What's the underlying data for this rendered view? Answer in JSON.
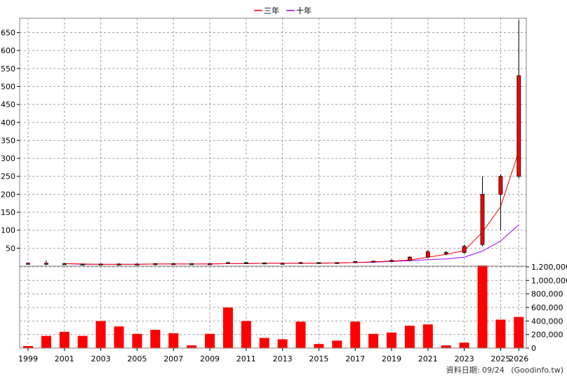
{
  "chart_data": {
    "type": "candlestick+bar",
    "legend": [
      {
        "label": "三年",
        "color": "#ff0000"
      },
      {
        "label": "十年",
        "color": "#9900ff"
      }
    ],
    "legend_position": "top-center",
    "grid": true,
    "price_axis": {
      "side": "left",
      "ylim": [
        0,
        690
      ],
      "ticks": [
        50,
        100,
        150,
        200,
        250,
        300,
        350,
        400,
        450,
        500,
        550,
        600,
        650
      ]
    },
    "volume_axis": {
      "side": "right",
      "ylim": [
        0,
        1200000
      ],
      "ticks": [
        0,
        200000,
        400000,
        600000,
        800000,
        1000000,
        1200000
      ],
      "tick_labels": [
        "0",
        "200,000",
        "400,000",
        "600,000",
        "800,000",
        "1,000,000",
        "1,200,000"
      ]
    },
    "x_tick_labels": [
      "1999",
      "2001",
      "2003",
      "2005",
      "2007",
      "2009",
      "2011",
      "2013",
      "2015",
      "2017",
      "2019",
      "2021",
      "2023",
      "2025",
      "2026"
    ],
    "years": [
      1999,
      2000,
      2001,
      2002,
      2003,
      2004,
      2005,
      2006,
      2007,
      2008,
      2009,
      2010,
      2011,
      2012,
      2013,
      2014,
      2015,
      2016,
      2017,
      2018,
      2019,
      2020,
      2021,
      2022,
      2023,
      2024,
      2025,
      2026
    ],
    "candles": [
      {
        "year": 1999,
        "open": 8,
        "high": 10,
        "low": 6,
        "close": 8
      },
      {
        "year": 2000,
        "open": 8,
        "high": 16,
        "low": 3,
        "close": 8
      },
      {
        "year": 2001,
        "open": 7,
        "high": 8,
        "low": 5,
        "close": 6
      },
      {
        "year": 2002,
        "open": 6,
        "high": 7,
        "low": 4,
        "close": 5
      },
      {
        "year": 2003,
        "open": 5,
        "high": 7,
        "low": 4,
        "close": 6
      },
      {
        "year": 2004,
        "open": 6,
        "high": 8,
        "low": 5,
        "close": 6
      },
      {
        "year": 2005,
        "open": 6,
        "high": 7,
        "low": 5,
        "close": 6
      },
      {
        "year": 2006,
        "open": 6,
        "high": 8,
        "low": 5,
        "close": 7
      },
      {
        "year": 2007,
        "open": 7,
        "high": 8,
        "low": 6,
        "close": 7
      },
      {
        "year": 2008,
        "open": 7,
        "high": 7,
        "low": 6,
        "close": 6
      },
      {
        "year": 2009,
        "open": 6,
        "high": 8,
        "low": 5,
        "close": 7
      },
      {
        "year": 2010,
        "open": 7,
        "high": 12,
        "low": 6,
        "close": 10
      },
      {
        "year": 2011,
        "open": 10,
        "high": 12,
        "low": 7,
        "close": 9
      },
      {
        "year": 2012,
        "open": 9,
        "high": 10,
        "low": 7,
        "close": 8
      },
      {
        "year": 2013,
        "open": 8,
        "high": 9,
        "low": 7,
        "close": 8
      },
      {
        "year": 2014,
        "open": 8,
        "high": 12,
        "low": 7,
        "close": 10
      },
      {
        "year": 2015,
        "open": 10,
        "high": 11,
        "low": 8,
        "close": 9
      },
      {
        "year": 2016,
        "open": 9,
        "high": 11,
        "low": 8,
        "close": 10
      },
      {
        "year": 2017,
        "open": 10,
        "high": 14,
        "low": 9,
        "close": 13
      },
      {
        "year": 2018,
        "open": 13,
        "high": 15,
        "low": 12,
        "close": 14
      },
      {
        "year": 2019,
        "open": 14,
        "high": 18,
        "low": 13,
        "close": 16
      },
      {
        "year": 2020,
        "open": 16,
        "high": 28,
        "low": 15,
        "close": 25
      },
      {
        "year": 2021,
        "open": 25,
        "high": 45,
        "low": 24,
        "close": 40
      },
      {
        "year": 2022,
        "open": 35,
        "high": 42,
        "low": 30,
        "close": 38
      },
      {
        "year": 2023,
        "open": 38,
        "high": 60,
        "low": 35,
        "close": 55
      },
      {
        "year": 2024,
        "open": 60,
        "high": 250,
        "low": 55,
        "close": 200
      },
      {
        "year": 2025,
        "open": 200,
        "high": 255,
        "low": 100,
        "close": 250
      },
      {
        "year": 2026,
        "open": 250,
        "high": 685,
        "low": 245,
        "close": 530
      }
    ],
    "ma_three_year": [
      null,
      null,
      7,
      6,
      5,
      5,
      5,
      6,
      6,
      6,
      6,
      7,
      7,
      8,
      8,
      8,
      8,
      9,
      10,
      12,
      14,
      17,
      25,
      33,
      43,
      95,
      165,
      320
    ],
    "ma_ten_year": [
      null,
      null,
      7,
      5,
      5,
      5,
      5,
      6,
      6,
      6,
      6,
      7,
      7,
      8,
      8,
      8,
      8,
      9,
      10,
      11,
      13,
      15,
      18,
      20,
      25,
      42,
      70,
      115
    ],
    "volume": [
      30000,
      180000,
      240000,
      180000,
      400000,
      320000,
      210000,
      270000,
      220000,
      40000,
      210000,
      600000,
      400000,
      150000,
      130000,
      390000,
      60000,
      110000,
      390000,
      210000,
      230000,
      330000,
      350000,
      40000,
      80000,
      1220000,
      420000,
      460000
    ]
  },
  "footer": {
    "date_text": "資料日期: 09/24",
    "source_text": "(Goodinfo.tw)"
  }
}
